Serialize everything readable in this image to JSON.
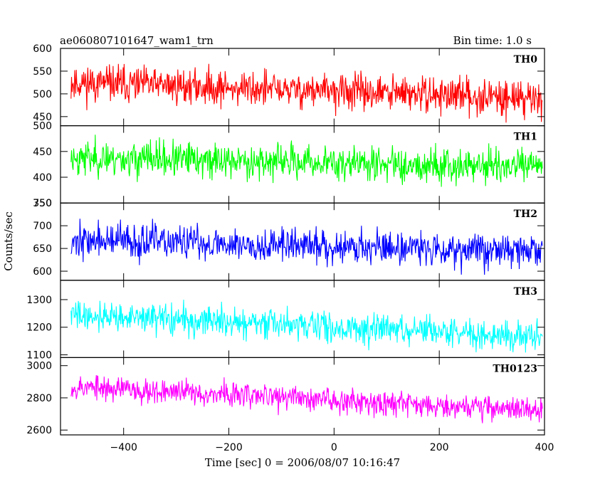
{
  "chart_data": {
    "type": "line",
    "title": "ae060807101647_wam1_trn",
    "bin_label": "Bin time: 1.0 s",
    "xlabel": "Time [sec] 0 = 2006/08/07 10:16:47",
    "ylabel": "Counts/sec",
    "xlim": [
      -520,
      400
    ],
    "x_ticks": [
      -400,
      -200,
      0,
      200,
      400
    ],
    "x_tick_labels": [
      "−400",
      "−200",
      "0",
      "200",
      "400"
    ],
    "grid": false,
    "panels": [
      {
        "name": "TH0",
        "color": "#ff0000",
        "ylim": [
          430,
          600
        ],
        "y_ticks": [
          450,
          500,
          550,
          600
        ],
        "x_start": -500,
        "x_end": 396,
        "mean_start": 525,
        "mean_end": 490,
        "noise": 28,
        "seed": 11
      },
      {
        "name": "TH1",
        "color": "#00ff00",
        "ylim": [
          350,
          500
        ],
        "y_ticks": [
          350,
          400,
          450,
          500
        ],
        "x_start": -500,
        "x_end": 396,
        "mean_start": 438,
        "mean_end": 420,
        "noise": 24,
        "seed": 23
      },
      {
        "name": "TH2",
        "color": "#0000ff",
        "ylim": [
          580,
          750
        ],
        "y_ticks": [
          600,
          650,
          700,
          750
        ],
        "x_start": -500,
        "x_end": 396,
        "mean_start": 668,
        "mean_end": 645,
        "noise": 27,
        "seed": 37
      },
      {
        "name": "TH3",
        "color": "#00ffff",
        "ylim": [
          1090,
          1370
        ],
        "y_ticks": [
          1100,
          1200,
          1300
        ],
        "x_start": -500,
        "x_end": 396,
        "mean_start": 1245,
        "mean_end": 1165,
        "noise": 38,
        "seed": 41
      },
      {
        "name": "TH0123",
        "color": "#ff00ff",
        "ylim": [
          2570,
          3050
        ],
        "y_ticks": [
          2600,
          2800,
          3000
        ],
        "x_start": -500,
        "x_end": 396,
        "mean_start": 2870,
        "mean_end": 2725,
        "noise": 55,
        "seed": 53
      }
    ]
  }
}
